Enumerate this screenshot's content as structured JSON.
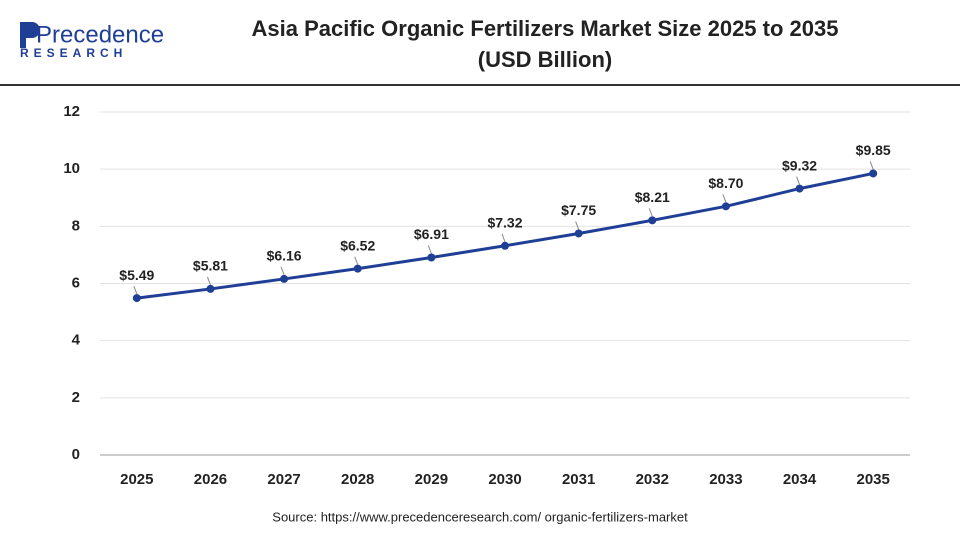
{
  "logo": {
    "name": "Precedence",
    "tagline": "RESEARCH"
  },
  "chart_data": {
    "type": "line",
    "title": "Asia Pacific Organic Fertilizers Market Size 2025 to 2035",
    "subtitle": "(USD Billion)",
    "categories": [
      "2025",
      "2026",
      "2027",
      "2028",
      "2029",
      "2030",
      "2031",
      "2032",
      "2033",
      "2034",
      "2035"
    ],
    "values": [
      5.49,
      5.81,
      6.16,
      6.52,
      6.91,
      7.32,
      7.75,
      8.21,
      8.7,
      9.32,
      9.85
    ],
    "value_labels": [
      "$5.49",
      "$5.81",
      "$6.16",
      "$6.52",
      "$6.91",
      "$7.32",
      "$7.75",
      "$8.21",
      "$8.70",
      "$9.32",
      "$9.85"
    ],
    "color": "#1f3f96",
    "ylim": [
      0,
      12
    ],
    "yticks": [
      0,
      2,
      4,
      6,
      8,
      10,
      12
    ],
    "grid": true,
    "source": "Source: https://www.precedenceresearch.com/ organic-fertilizers-market"
  }
}
